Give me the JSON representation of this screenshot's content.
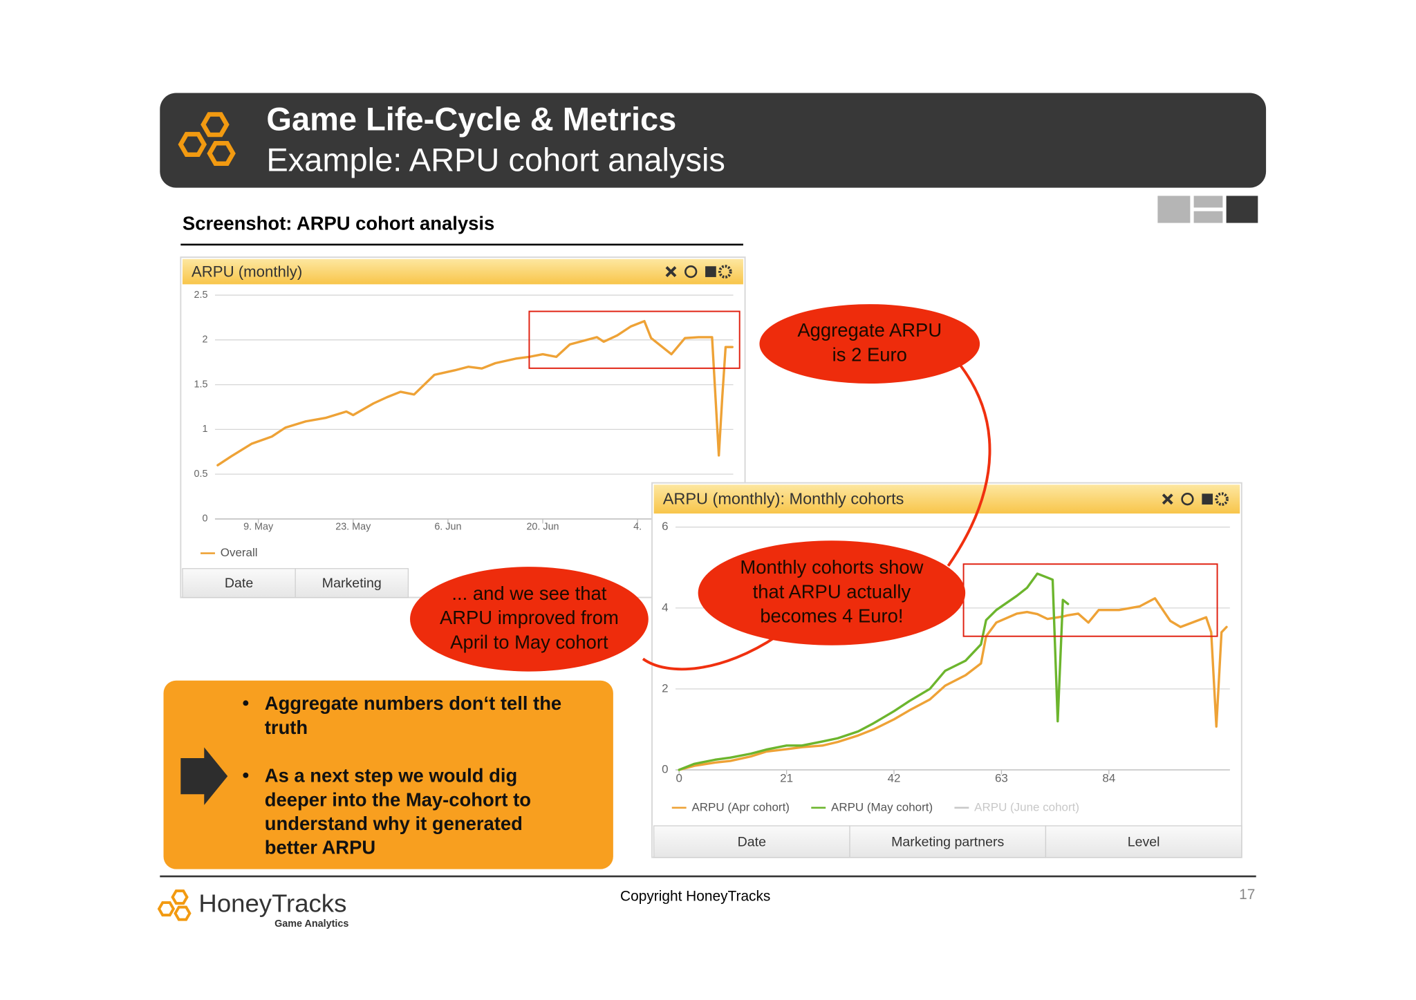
{
  "header": {
    "title": "Game Life-Cycle & Metrics",
    "subtitle": "Example: ARPU cohort analysis"
  },
  "section_title": "Screenshot: ARPU cohort analysis",
  "chart_data": [
    {
      "type": "line",
      "title": "ARPU (monthly)",
      "x": [
        0,
        2,
        5,
        8,
        10,
        13,
        16,
        19,
        20,
        23,
        25,
        27,
        29,
        32,
        35,
        37,
        39,
        41,
        44,
        46,
        48,
        50,
        52,
        54,
        56,
        57,
        59,
        61,
        63,
        64,
        67,
        69,
        71,
        73,
        73.5,
        74,
        74.5,
        75,
        76
      ],
      "series": [
        {
          "name": "Overall",
          "color": "#eea236",
          "values": [
            0.6,
            0.7,
            0.84,
            0.92,
            1.02,
            1.09,
            1.13,
            1.2,
            1.16,
            1.29,
            1.36,
            1.42,
            1.39,
            1.61,
            1.66,
            1.7,
            1.68,
            1.74,
            1.79,
            1.81,
            1.84,
            1.81,
            1.95,
            1.99,
            2.03,
            1.98,
            2.05,
            2.15,
            2.21,
            2.02,
            1.84,
            2.02,
            2.03,
            2.03,
            1.36,
            0.71,
            1.36,
            1.92,
            1.92
          ]
        }
      ],
      "xlim": [
        0,
        76
      ],
      "xticks": [
        {
          "value": 6,
          "label": "9. May"
        },
        {
          "value": 20,
          "label": "23. May"
        },
        {
          "value": 34,
          "label": "6. Jun"
        },
        {
          "value": 48,
          "label": "20. Jun"
        },
        {
          "value": 62,
          "label": "4."
        }
      ],
      "ylim": [
        0,
        2.5
      ],
      "yticks": [
        0,
        0.5,
        1,
        1.5,
        2,
        2.5
      ],
      "grid": true,
      "tabs": [
        "Date",
        "Marketing"
      ]
    },
    {
      "type": "line",
      "title": "ARPU (monthly): Monthly cohorts",
      "x": [
        0,
        3,
        7,
        10,
        14,
        17,
        21,
        24,
        28,
        31,
        35,
        38,
        42,
        45,
        49,
        52,
        56,
        59,
        60,
        62,
        66,
        68,
        70,
        72,
        73,
        74,
        75,
        76,
        78,
        80,
        82,
        86,
        90,
        93,
        96,
        98,
        103,
        104,
        105,
        106,
        107
      ],
      "series": [
        {
          "name": "ARPU (Apr cohort)",
          "color": "#eea236",
          "values": [
            0,
            0.1,
            0.18,
            0.22,
            0.33,
            0.45,
            0.51,
            0.56,
            0.6,
            0.69,
            0.85,
            1.0,
            1.25,
            1.47,
            1.74,
            2.08,
            2.34,
            2.63,
            3.3,
            3.64,
            3.86,
            3.9,
            3.85,
            3.73,
            3.75,
            3.77,
            3.79,
            3.82,
            3.86,
            3.64,
            3.95,
            3.95,
            4.04,
            4.24,
            3.68,
            3.53,
            3.77,
            3.4,
            1.07,
            3.4,
            3.53
          ]
        },
        {
          "name": "ARPU (May cohort)",
          "color": "#6cb52d",
          "values": [
            0,
            0.15,
            0.25,
            0.3,
            0.4,
            0.5,
            0.6,
            0.6,
            0.7,
            0.78,
            0.95,
            1.15,
            1.45,
            1.7,
            2.0,
            2.45,
            2.7,
            3.1,
            3.7,
            3.95,
            4.3,
            4.5,
            4.85,
            4.75,
            4.7,
            1.2,
            4.2,
            4.1,
            null,
            null,
            null,
            null,
            null,
            null,
            null,
            null,
            null,
            null,
            null,
            null,
            null
          ]
        },
        {
          "name": "ARPU (June cohort)",
          "color": "#c8c8c8",
          "values": [
            null,
            null,
            null,
            null,
            null,
            null,
            null,
            null,
            null,
            null,
            null,
            null,
            null,
            null,
            null,
            null,
            null,
            null,
            null,
            null,
            null,
            null,
            null,
            null,
            null,
            null,
            null,
            null,
            null,
            null,
            null,
            null,
            null,
            null,
            null,
            null,
            null,
            null,
            null,
            null,
            null
          ]
        }
      ],
      "xlim": [
        0,
        108
      ],
      "xticks": [
        0,
        21,
        42,
        63,
        84
      ],
      "ylim": [
        0,
        6
      ],
      "yticks": [
        0,
        2,
        4,
        6
      ],
      "grid": true,
      "tabs": [
        "Date",
        "Marketing partners",
        "Level"
      ]
    }
  ],
  "callouts": [
    [
      "Aggregate ARPU",
      "is  2 Euro"
    ],
    [
      "Monthly cohorts show",
      "that ARPU actually",
      "becomes 4 Euro!"
    ],
    [
      "... and we see that",
      "ARPU improved from",
      "April to May cohort"
    ]
  ],
  "bullets": [
    [
      "Aggregate numbers don‘t tell the",
      "truth"
    ],
    [
      "As a next step we would dig",
      "deeper into the May-cohort to",
      "understand why it generated",
      "better ARPU"
    ]
  ],
  "footer": {
    "brand": "HoneyTracks",
    "tagline": "Game Analytics",
    "copyright": "Copyright HoneyTracks",
    "page": "17"
  }
}
